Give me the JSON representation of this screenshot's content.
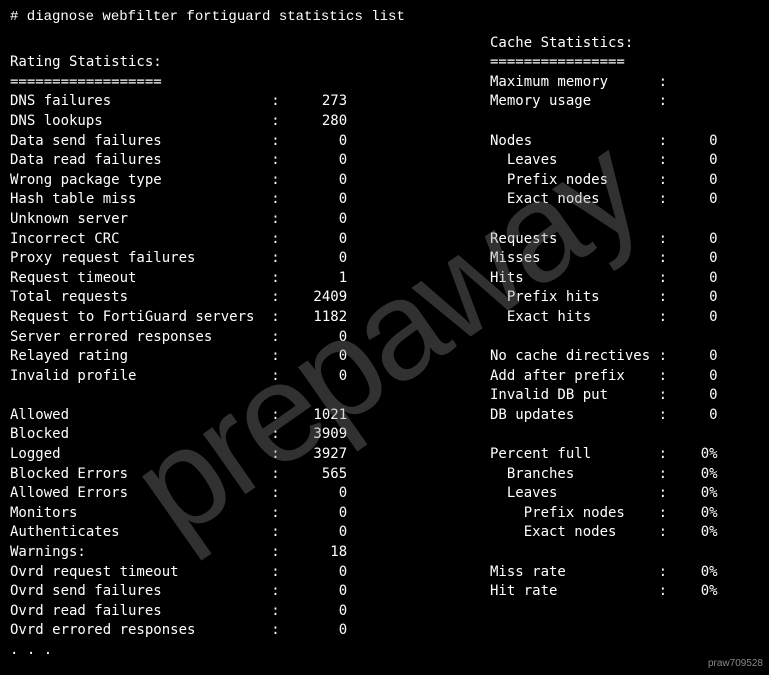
{
  "command": "# diagnose webfilter fortiguard statistics list",
  "left": {
    "title": "Rating Statistics:",
    "underline": "==================",
    "group1": [
      {
        "label": "DNS failures",
        "value": "273"
      },
      {
        "label": "DNS lookups",
        "value": "280"
      },
      {
        "label": "Data send failures",
        "value": "0"
      },
      {
        "label": "Data read failures",
        "value": "0"
      },
      {
        "label": "Wrong package type",
        "value": "0"
      },
      {
        "label": "Hash table miss",
        "value": "0"
      },
      {
        "label": "Unknown server",
        "value": "0"
      },
      {
        "label": "Incorrect CRC",
        "value": "0"
      },
      {
        "label": "Proxy request failures",
        "value": "0"
      },
      {
        "label": "Request timeout",
        "value": "1"
      },
      {
        "label": "Total requests",
        "value": "2409"
      },
      {
        "label": "Request to FortiGuard servers",
        "value": "1182"
      },
      {
        "label": "Server errored responses",
        "value": "0"
      },
      {
        "label": "Relayed rating",
        "value": "0"
      },
      {
        "label": "Invalid profile",
        "value": "0"
      }
    ],
    "group2": [
      {
        "label": "Allowed",
        "value": "1021"
      },
      {
        "label": "Blocked",
        "value": "3909"
      },
      {
        "label": "Logged",
        "value": "3927"
      },
      {
        "label": "Blocked Errors",
        "value": "565"
      },
      {
        "label": "Allowed Errors",
        "value": "0"
      },
      {
        "label": "Monitors",
        "value": "0"
      },
      {
        "label": "Authenticates",
        "value": "0"
      },
      {
        "label": "Warnings:",
        "value": "18"
      },
      {
        "label": "Ovrd request timeout",
        "value": "0"
      },
      {
        "label": "Ovrd send failures",
        "value": "0"
      },
      {
        "label": "Ovrd read failures",
        "value": "0"
      },
      {
        "label": "Ovrd errored responses",
        "value": "0"
      }
    ],
    "ellipsis": ". . ."
  },
  "right": {
    "title": "Cache Statistics:",
    "underline": "================",
    "group1": [
      {
        "label": "Maximum memory",
        "value": ""
      },
      {
        "label": "Memory usage",
        "value": ""
      }
    ],
    "group2": [
      {
        "label": "Nodes",
        "value": "0"
      },
      {
        "label": "  Leaves",
        "value": "0"
      },
      {
        "label": "  Prefix nodes",
        "value": "0"
      },
      {
        "label": "  Exact nodes",
        "value": "0"
      }
    ],
    "group3": [
      {
        "label": "Requests",
        "value": "0"
      },
      {
        "label": "Misses",
        "value": "0"
      },
      {
        "label": "Hits",
        "value": "0"
      },
      {
        "label": "  Prefix hits",
        "value": "0"
      },
      {
        "label": "  Exact hits",
        "value": "0"
      }
    ],
    "group4": [
      {
        "label": "No cache directives",
        "value": "0"
      },
      {
        "label": "Add after prefix",
        "value": "0"
      },
      {
        "label": "Invalid DB put",
        "value": "0"
      },
      {
        "label": "DB updates",
        "value": "0"
      }
    ],
    "group5": [
      {
        "label": "Percent full",
        "value": "0%"
      },
      {
        "label": "  Branches",
        "value": "0%"
      },
      {
        "label": "  Leaves",
        "value": "0%"
      },
      {
        "label": "    Prefix nodes",
        "value": "0%"
      },
      {
        "label": "    Exact nodes",
        "value": "0%"
      }
    ],
    "group6": [
      {
        "label": "Miss rate",
        "value": "0%"
      },
      {
        "label": "Hit rate",
        "value": "0%"
      }
    ]
  },
  "watermark": "prepaway",
  "id_tag": "praw709528",
  "layout": {
    "left_label_width": 31,
    "left_value_width": 8,
    "right_label_width": 20,
    "right_value_width": 6
  }
}
